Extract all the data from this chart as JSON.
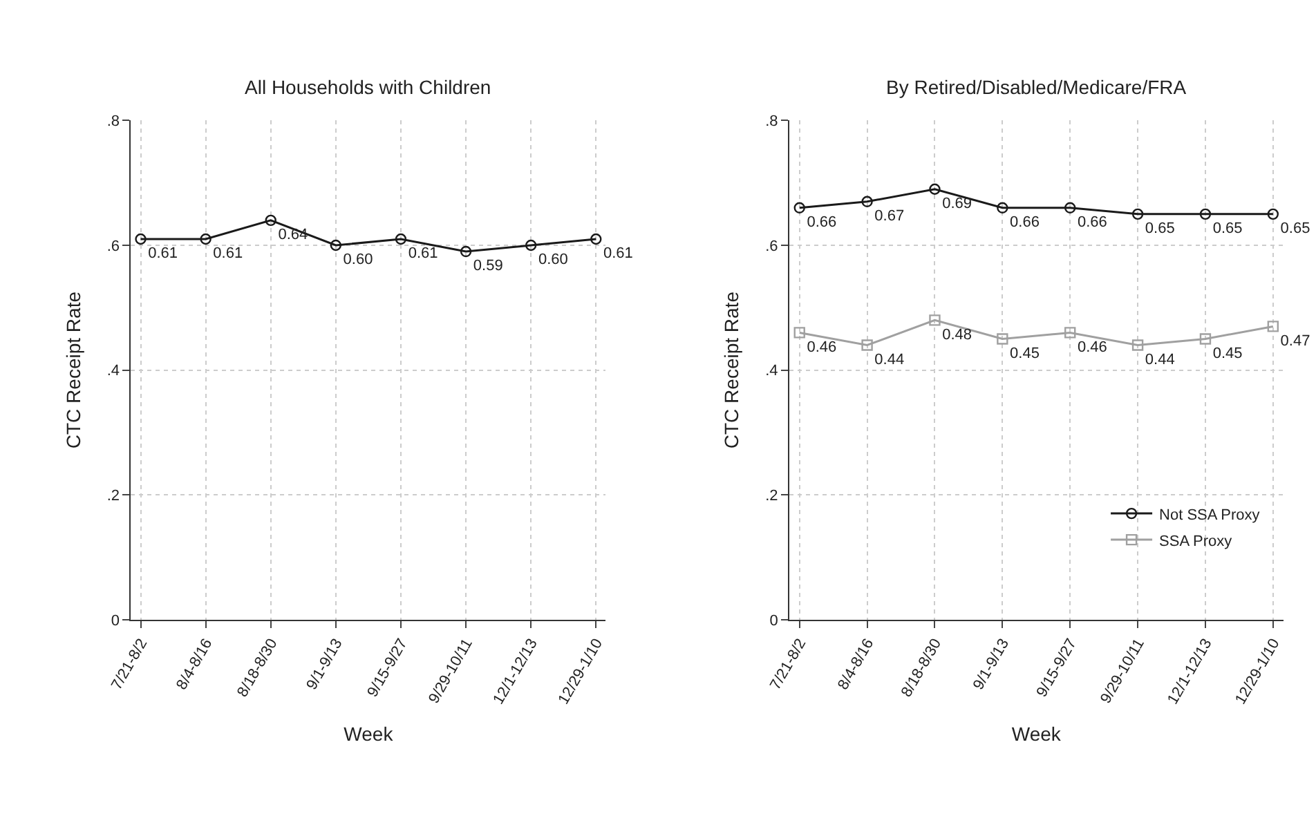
{
  "chart_data": [
    {
      "type": "line",
      "title": "All Households with Children",
      "xlabel": "Week",
      "ylabel": "CTC Receipt Rate",
      "categories": [
        "7/21-8/2",
        "8/4-8/16",
        "8/18-8/30",
        "9/1-9/13",
        "9/15-9/27",
        "9/29-10/11",
        "12/1-12/13",
        "12/29-1/10"
      ],
      "series": [
        {
          "color": "#1a1a1a",
          "marker": "circle",
          "values": [
            0.61,
            0.61,
            0.64,
            0.6,
            0.61,
            0.59,
            0.6,
            0.61
          ],
          "value_labels": [
            "0.61",
            "0.61",
            "0.64",
            "0.60",
            "0.61",
            "0.59",
            "0.60",
            "0.61"
          ]
        }
      ],
      "ylim": [
        0,
        0.8
      ],
      "yticks": [
        0,
        {
          "value": 0.2,
          "label": ".2"
        },
        {
          "value": 0.4,
          "label": ".4"
        },
        {
          "value": 0.6,
          "label": ".6"
        },
        {
          "value": 0.8,
          "label": ".8"
        }
      ],
      "grid": true,
      "legend": false
    },
    {
      "type": "line",
      "title": "By Retired/Disabled/Medicare/FRA",
      "xlabel": "Week",
      "ylabel": "CTC Receipt Rate",
      "categories": [
        "7/21-8/2",
        "8/4-8/16",
        "8/18-8/30",
        "9/1-9/13",
        "9/15-9/27",
        "9/29-10/11",
        "12/1-12/13",
        "12/29-1/10"
      ],
      "series": [
        {
          "name": "Not SSA Proxy",
          "color": "#1a1a1a",
          "marker": "circle",
          "values": [
            0.66,
            0.67,
            0.69,
            0.66,
            0.66,
            0.65,
            0.65,
            0.65
          ],
          "value_labels": [
            "0.66",
            "0.67",
            "0.69",
            "0.66",
            "0.66",
            "0.65",
            "0.65",
            "0.65"
          ]
        },
        {
          "name": "SSA Proxy",
          "color": "#a0a0a0",
          "marker": "square",
          "values": [
            0.46,
            0.44,
            0.48,
            0.45,
            0.46,
            0.44,
            0.45,
            0.47
          ],
          "value_labels": [
            "0.46",
            "0.44",
            "0.48",
            "0.45",
            "0.46",
            "0.44",
            "0.45",
            "0.47"
          ]
        }
      ],
      "ylim": [
        0,
        0.8
      ],
      "yticks": [
        0,
        {
          "value": 0.2,
          "label": ".2"
        },
        {
          "value": 0.4,
          "label": ".4"
        },
        {
          "value": 0.6,
          "label": ".6"
        },
        {
          "value": 0.8,
          "label": ".8"
        }
      ],
      "grid": true,
      "legend": "bottom right"
    }
  ]
}
